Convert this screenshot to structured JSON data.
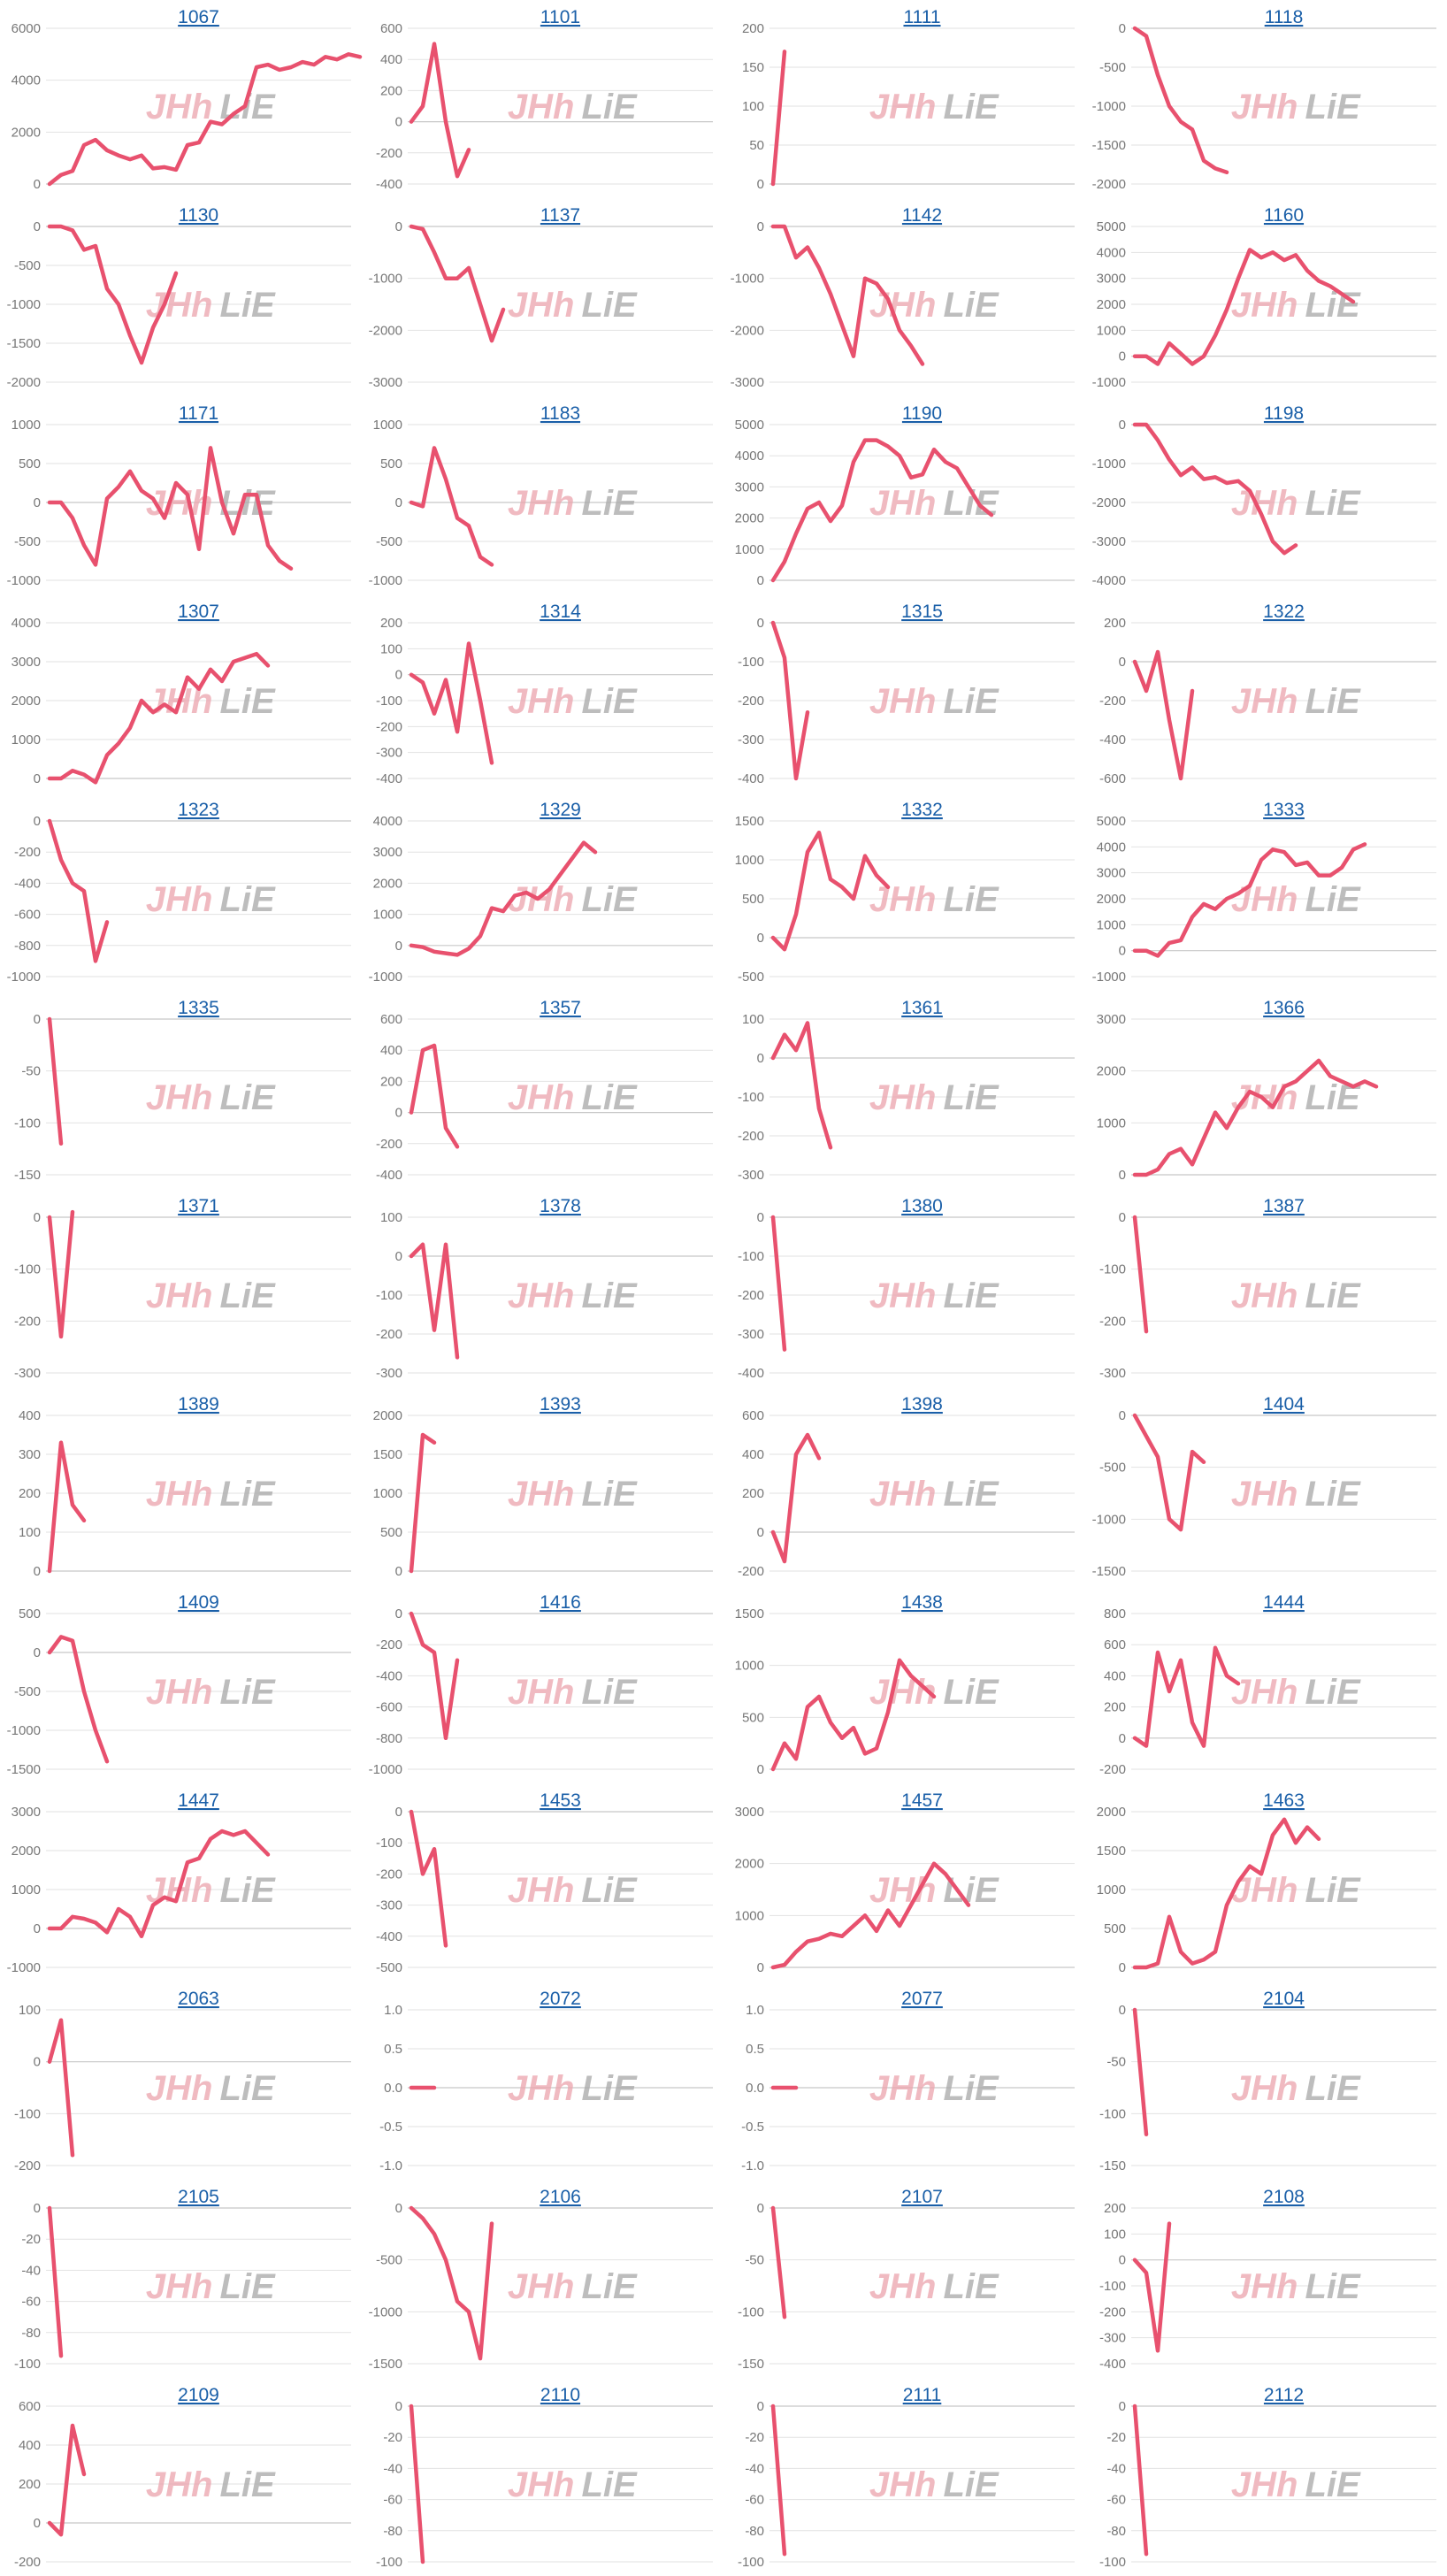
{
  "colors": {
    "series": "#e8516e",
    "title": "#1a5fa8"
  },
  "watermark": {
    "part1": "JHh",
    "part2": "LiE"
  },
  "chart_data": [
    {
      "type": "line",
      "title": "1067",
      "ylim": [
        0,
        6000
      ],
      "yticks": [
        0,
        2000,
        4000,
        6000
      ],
      "values": [
        0,
        350,
        500,
        1500,
        1700,
        1300,
        1100,
        950,
        1100,
        600,
        650,
        550,
        1500,
        1600,
        2400,
        2300,
        2700,
        3000,
        4500,
        4600,
        4400,
        4500,
        4700,
        4600,
        4900,
        4800,
        5000,
        4900
      ]
    },
    {
      "type": "line",
      "title": "1101",
      "ylim": [
        -400,
        600
      ],
      "yticks": [
        -400,
        -200,
        0,
        200,
        400,
        600
      ],
      "values": [
        0,
        100,
        500,
        0,
        -350,
        -180
      ]
    },
    {
      "type": "line",
      "title": "1111",
      "ylim": [
        0,
        200
      ],
      "yticks": [
        0,
        50,
        100,
        150,
        200
      ],
      "values": [
        0,
        170
      ]
    },
    {
      "type": "line",
      "title": "1118",
      "ylim": [
        -2000,
        0
      ],
      "yticks": [
        -2000,
        -1500,
        -1000,
        -500,
        0
      ],
      "values": [
        0,
        -100,
        -600,
        -1000,
        -1200,
        -1300,
        -1700,
        -1800,
        -1850
      ]
    },
    {
      "type": "line",
      "title": "1130",
      "ylim": [
        -2000,
        0
      ],
      "yticks": [
        -2000,
        -1500,
        -1000,
        -500,
        0
      ],
      "values": [
        0,
        0,
        -50,
        -300,
        -250,
        -800,
        -1000,
        -1400,
        -1750,
        -1300,
        -1000,
        -600
      ]
    },
    {
      "type": "line",
      "title": "1137",
      "ylim": [
        -3000,
        0
      ],
      "yticks": [
        -3000,
        -2000,
        -1000,
        0
      ],
      "values": [
        0,
        -50,
        -500,
        -1000,
        -1000,
        -800,
        -1500,
        -2200,
        -1600
      ]
    },
    {
      "type": "line",
      "title": "1142",
      "ylim": [
        -3000,
        0
      ],
      "yticks": [
        -3000,
        -2000,
        -1000,
        0
      ],
      "values": [
        0,
        0,
        -600,
        -400,
        -800,
        -1300,
        -1900,
        -2500,
        -1000,
        -1100,
        -1400,
        -2000,
        -2300,
        -2650
      ]
    },
    {
      "type": "line",
      "title": "1160",
      "ylim": [
        -1000,
        5000
      ],
      "yticks": [
        -1000,
        0,
        1000,
        2000,
        3000,
        4000,
        5000
      ],
      "values": [
        0,
        0,
        -300,
        500,
        100,
        -300,
        0,
        800,
        1800,
        3000,
        4100,
        3800,
        4000,
        3700,
        3900,
        3300,
        2900,
        2700,
        2400,
        2100
      ]
    },
    {
      "type": "line",
      "title": "1171",
      "ylim": [
        -1000,
        1000
      ],
      "yticks": [
        -1000,
        -500,
        0,
        500,
        1000
      ],
      "values": [
        0,
        0,
        -200,
        -550,
        -800,
        50,
        200,
        400,
        150,
        50,
        -200,
        250,
        100,
        -600,
        700,
        0,
        -400,
        100,
        100,
        -550,
        -750,
        -850
      ]
    },
    {
      "type": "line",
      "title": "1183",
      "ylim": [
        -1000,
        1000
      ],
      "yticks": [
        -1000,
        -500,
        0,
        500,
        1000
      ],
      "values": [
        0,
        -50,
        700,
        300,
        -200,
        -300,
        -700,
        -800
      ]
    },
    {
      "type": "line",
      "title": "1190",
      "ylim": [
        0,
        5000
      ],
      "yticks": [
        0,
        1000,
        2000,
        3000,
        4000,
        5000
      ],
      "values": [
        0,
        600,
        1500,
        2300,
        2500,
        1900,
        2400,
        3800,
        4500,
        4500,
        4300,
        4000,
        3300,
        3400,
        4200,
        3800,
        3600,
        3000,
        2400,
        2100
      ]
    },
    {
      "type": "line",
      "title": "1198",
      "ylim": [
        -4000,
        0
      ],
      "yticks": [
        -4000,
        -3000,
        -2000,
        -1000,
        0
      ],
      "values": [
        0,
        0,
        -400,
        -900,
        -1300,
        -1100,
        -1400,
        -1350,
        -1500,
        -1450,
        -1700,
        -2300,
        -3000,
        -3300,
        -3100
      ]
    },
    {
      "type": "line",
      "title": "1307",
      "ylim": [
        0,
        4000
      ],
      "yticks": [
        0,
        1000,
        2000,
        3000,
        4000
      ],
      "values": [
        0,
        0,
        200,
        100,
        -100,
        600,
        900,
        1300,
        2000,
        1700,
        1900,
        1700,
        2600,
        2300,
        2800,
        2500,
        3000,
        3100,
        3200,
        2900
      ]
    },
    {
      "type": "line",
      "title": "1314",
      "ylim": [
        -400,
        200
      ],
      "yticks": [
        -400,
        -300,
        -200,
        -100,
        0,
        100,
        200
      ],
      "values": [
        0,
        -30,
        -150,
        -20,
        -220,
        120,
        -100,
        -340
      ]
    },
    {
      "type": "line",
      "title": "1315",
      "ylim": [
        -400,
        0
      ],
      "yticks": [
        -400,
        -300,
        -200,
        -100,
        0
      ],
      "values": [
        0,
        -90,
        -400,
        -230
      ]
    },
    {
      "type": "line",
      "title": "1322",
      "ylim": [
        -600,
        200
      ],
      "yticks": [
        -600,
        -400,
        -200,
        0,
        200
      ],
      "values": [
        0,
        -150,
        50,
        -300,
        -600,
        -150
      ]
    },
    {
      "type": "line",
      "title": "1323",
      "ylim": [
        -1000,
        0
      ],
      "yticks": [
        -1000,
        -800,
        -600,
        -400,
        -200,
        0
      ],
      "values": [
        0,
        -250,
        -400,
        -450,
        -900,
        -650
      ]
    },
    {
      "type": "line",
      "title": "1329",
      "ylim": [
        -1000,
        4000
      ],
      "yticks": [
        -1000,
        0,
        1000,
        2000,
        3000,
        4000
      ],
      "values": [
        0,
        -50,
        -200,
        -250,
        -300,
        -100,
        300,
        1200,
        1100,
        1600,
        1700,
        1500,
        1800,
        2300,
        2800,
        3300,
        3000
      ]
    },
    {
      "type": "line",
      "title": "1332",
      "ylim": [
        -500,
        1500
      ],
      "yticks": [
        -500,
        0,
        500,
        1000,
        1500
      ],
      "values": [
        0,
        -150,
        300,
        1100,
        1350,
        750,
        650,
        500,
        1050,
        800,
        650
      ]
    },
    {
      "type": "line",
      "title": "1333",
      "ylim": [
        -1000,
        5000
      ],
      "yticks": [
        -1000,
        0,
        1000,
        2000,
        3000,
        4000,
        5000
      ],
      "values": [
        0,
        0,
        -200,
        300,
        400,
        1300,
        1800,
        1600,
        2000,
        2200,
        2500,
        3500,
        3900,
        3800,
        3300,
        3400,
        2900,
        2900,
        3200,
        3900,
        4100
      ]
    },
    {
      "type": "line",
      "title": "1335",
      "ylim": [
        -150,
        0
      ],
      "yticks": [
        -150,
        -100,
        -50,
        0
      ],
      "values": [
        0,
        -120
      ]
    },
    {
      "type": "line",
      "title": "1357",
      "ylim": [
        -400,
        600
      ],
      "yticks": [
        -400,
        -200,
        0,
        200,
        400,
        600
      ],
      "values": [
        0,
        400,
        430,
        -100,
        -220
      ]
    },
    {
      "type": "line",
      "title": "1361",
      "ylim": [
        -300,
        100
      ],
      "yticks": [
        -300,
        -200,
        -100,
        0,
        100
      ],
      "values": [
        0,
        60,
        20,
        90,
        -130,
        -230
      ]
    },
    {
      "type": "line",
      "title": "1366",
      "ylim": [
        0,
        3000
      ],
      "yticks": [
        0,
        1000,
        2000,
        3000
      ],
      "values": [
        0,
        0,
        100,
        400,
        500,
        200,
        700,
        1200,
        900,
        1300,
        1600,
        1500,
        1300,
        1700,
        1800,
        2000,
        2200,
        1900,
        1800,
        1700,
        1800,
        1700
      ]
    },
    {
      "type": "line",
      "title": "1371",
      "ylim": [
        -300,
        0
      ],
      "yticks": [
        -300,
        -200,
        -100,
        0
      ],
      "values": [
        0,
        -230,
        10
      ]
    },
    {
      "type": "line",
      "title": "1378",
      "ylim": [
        -300,
        100
      ],
      "yticks": [
        -300,
        -200,
        -100,
        0,
        100
      ],
      "values": [
        0,
        30,
        -190,
        30,
        -260
      ]
    },
    {
      "type": "line",
      "title": "1380",
      "ylim": [
        -400,
        0
      ],
      "yticks": [
        -400,
        -300,
        -200,
        -100,
        0
      ],
      "values": [
        0,
        -340
      ]
    },
    {
      "type": "line",
      "title": "1387",
      "ylim": [
        -300,
        0
      ],
      "yticks": [
        -300,
        -200,
        -100,
        0
      ],
      "values": [
        0,
        -220
      ]
    },
    {
      "type": "line",
      "title": "1389",
      "ylim": [
        0,
        400
      ],
      "yticks": [
        0,
        100,
        200,
        300,
        400
      ],
      "values": [
        0,
        330,
        170,
        130
      ]
    },
    {
      "type": "line",
      "title": "1393",
      "ylim": [
        0,
        2000
      ],
      "yticks": [
        0,
        500,
        1000,
        1500,
        2000
      ],
      "values": [
        0,
        1750,
        1650
      ]
    },
    {
      "type": "line",
      "title": "1398",
      "ylim": [
        -200,
        600
      ],
      "yticks": [
        -200,
        0,
        200,
        400,
        600
      ],
      "values": [
        0,
        -150,
        400,
        500,
        380
      ]
    },
    {
      "type": "line",
      "title": "1404",
      "ylim": [
        -1500,
        0
      ],
      "yticks": [
        -1500,
        -1000,
        -500,
        0
      ],
      "values": [
        0,
        -200,
        -400,
        -1000,
        -1100,
        -350,
        -450
      ]
    },
    {
      "type": "line",
      "title": "1409",
      "ylim": [
        -1500,
        500
      ],
      "yticks": [
        -1500,
        -1000,
        -500,
        0,
        500
      ],
      "values": [
        0,
        200,
        150,
        -500,
        -1000,
        -1400
      ]
    },
    {
      "type": "line",
      "title": "1416",
      "ylim": [
        -1000,
        0
      ],
      "yticks": [
        -1000,
        -800,
        -600,
        -400,
        -200,
        0
      ],
      "values": [
        0,
        -200,
        -250,
        -800,
        -300
      ]
    },
    {
      "type": "line",
      "title": "1438",
      "ylim": [
        0,
        1500
      ],
      "yticks": [
        0,
        500,
        1000,
        1500
      ],
      "values": [
        0,
        250,
        100,
        600,
        700,
        450,
        300,
        400,
        150,
        200,
        550,
        1050,
        900,
        800,
        700
      ]
    },
    {
      "type": "line",
      "title": "1444",
      "ylim": [
        -200,
        800
      ],
      "yticks": [
        -200,
        0,
        200,
        400,
        600,
        800
      ],
      "values": [
        0,
        -50,
        550,
        300,
        500,
        100,
        -50,
        580,
        400,
        350
      ]
    },
    {
      "type": "line",
      "title": "1447",
      "ylim": [
        -1000,
        3000
      ],
      "yticks": [
        -1000,
        0,
        1000,
        2000,
        3000
      ],
      "values": [
        0,
        0,
        300,
        250,
        150,
        -100,
        500,
        300,
        -200,
        600,
        800,
        700,
        1700,
        1800,
        2300,
        2500,
        2400,
        2500,
        2200,
        1900
      ]
    },
    {
      "type": "line",
      "title": "1453",
      "ylim": [
        -500,
        0
      ],
      "yticks": [
        -500,
        -400,
        -300,
        -200,
        -100,
        0
      ],
      "values": [
        0,
        -200,
        -120,
        -430
      ]
    },
    {
      "type": "line",
      "title": "1457",
      "ylim": [
        0,
        3000
      ],
      "yticks": [
        0,
        1000,
        2000,
        3000
      ],
      "values": [
        0,
        50,
        300,
        500,
        550,
        650,
        600,
        800,
        1000,
        700,
        1100,
        800,
        1200,
        1600,
        2000,
        1800,
        1500,
        1200
      ]
    },
    {
      "type": "line",
      "title": "1463",
      "ylim": [
        0,
        2000
      ],
      "yticks": [
        0,
        500,
        1000,
        1500,
        2000
      ],
      "values": [
        0,
        0,
        50,
        650,
        200,
        50,
        100,
        200,
        800,
        1100,
        1300,
        1200,
        1700,
        1900,
        1600,
        1800,
        1650
      ]
    },
    {
      "type": "line",
      "title": "2063",
      "ylim": [
        -200,
        100
      ],
      "yticks": [
        -200,
        -100,
        0,
        100
      ],
      "values": [
        0,
        80,
        -180
      ]
    },
    {
      "type": "line",
      "title": "2072",
      "ylim": [
        -1,
        1
      ],
      "yticks": [
        -1.0,
        -0.5,
        0,
        0.5,
        1.0
      ],
      "values": [
        0,
        0,
        0
      ]
    },
    {
      "type": "line",
      "title": "2077",
      "ylim": [
        -1,
        1
      ],
      "yticks": [
        -1.0,
        -0.5,
        0,
        0.5,
        1.0
      ],
      "values": [
        0,
        0,
        0
      ]
    },
    {
      "type": "line",
      "title": "2104",
      "ylim": [
        -150,
        0
      ],
      "yticks": [
        -150,
        -100,
        -50,
        0
      ],
      "values": [
        0,
        -120
      ]
    },
    {
      "type": "line",
      "title": "2105",
      "ylim": [
        -100,
        0
      ],
      "yticks": [
        -100,
        -80,
        -60,
        -40,
        -20,
        0
      ],
      "values": [
        0,
        -95
      ]
    },
    {
      "type": "line",
      "title": "2106",
      "ylim": [
        -1500,
        0
      ],
      "yticks": [
        -1500,
        -1000,
        -500,
        0
      ],
      "values": [
        0,
        -100,
        -250,
        -500,
        -900,
        -1000,
        -1450,
        -150
      ]
    },
    {
      "type": "line",
      "title": "2107",
      "ylim": [
        -150,
        0
      ],
      "yticks": [
        -150,
        -100,
        -50,
        0
      ],
      "values": [
        0,
        -105
      ]
    },
    {
      "type": "line",
      "title": "2108",
      "ylim": [
        -400,
        200
      ],
      "yticks": [
        -400,
        -300,
        -200,
        -100,
        0,
        100,
        200
      ],
      "values": [
        0,
        -50,
        -350,
        140
      ]
    },
    {
      "type": "line",
      "title": "2109",
      "ylim": [
        -200,
        600
      ],
      "yticks": [
        -200,
        0,
        200,
        400,
        600
      ],
      "values": [
        0,
        -60,
        500,
        250
      ]
    },
    {
      "type": "line",
      "title": "2110",
      "ylim": [
        -100,
        0
      ],
      "yticks": [
        -100,
        -80,
        -60,
        -40,
        -20,
        0
      ],
      "values": [
        0,
        -100
      ]
    },
    {
      "type": "line",
      "title": "2111",
      "ylim": [
        -100,
        0
      ],
      "yticks": [
        -100,
        -80,
        -60,
        -40,
        -20,
        0
      ],
      "values": [
        0,
        -95
      ]
    },
    {
      "type": "line",
      "title": "2112",
      "ylim": [
        -100,
        0
      ],
      "yticks": [
        -100,
        -80,
        -60,
        -40,
        -20,
        0
      ],
      "values": [
        0,
        -95
      ]
    }
  ]
}
